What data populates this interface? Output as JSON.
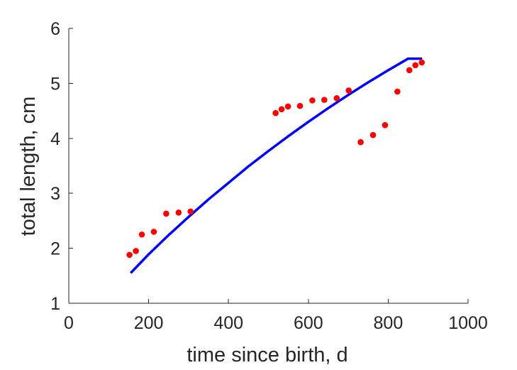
{
  "chart_data": {
    "type": "scatter",
    "title": "",
    "xlabel": "time since birth, d",
    "ylabel": "total length, cm",
    "xlim": [
      0,
      1000
    ],
    "ylim": [
      1,
      6
    ],
    "xticks": [
      0,
      200,
      400,
      600,
      800,
      1000
    ],
    "yticks": [
      1,
      2,
      3,
      4,
      5,
      6
    ],
    "xtick_labels": [
      "0",
      "200",
      "400",
      "600",
      "800",
      "1000"
    ],
    "ytick_labels": [
      "1",
      "2",
      "3",
      "4",
      "5",
      "6"
    ],
    "grid": false,
    "legend": false,
    "series": [
      {
        "type": "scatter",
        "color": "#ff0000",
        "marker": "filled-circle",
        "x": [
          152,
          168,
          183,
          213,
          244,
          275,
          305,
          518,
          533,
          549,
          579,
          610,
          640,
          671,
          701,
          731,
          762,
          792,
          823,
          853,
          868,
          884
        ],
        "y": [
          1.88,
          1.95,
          2.25,
          2.3,
          2.63,
          2.65,
          2.67,
          4.46,
          4.53,
          4.58,
          4.59,
          4.69,
          4.7,
          4.73,
          4.87,
          3.93,
          4.06,
          4.24,
          4.85,
          5.24,
          5.33,
          5.38
        ]
      },
      {
        "type": "line",
        "color": "#0000ff",
        "x": [
          155,
          200,
          250,
          300,
          350,
          400,
          450,
          500,
          550,
          600,
          650,
          700,
          750,
          800,
          850,
          885
        ],
        "y": [
          1.55,
          1.89,
          2.24,
          2.57,
          2.89,
          3.19,
          3.49,
          3.77,
          4.04,
          4.3,
          4.55,
          4.79,
          5.02,
          5.24,
          5.45,
          5.45
        ]
      }
    ]
  }
}
